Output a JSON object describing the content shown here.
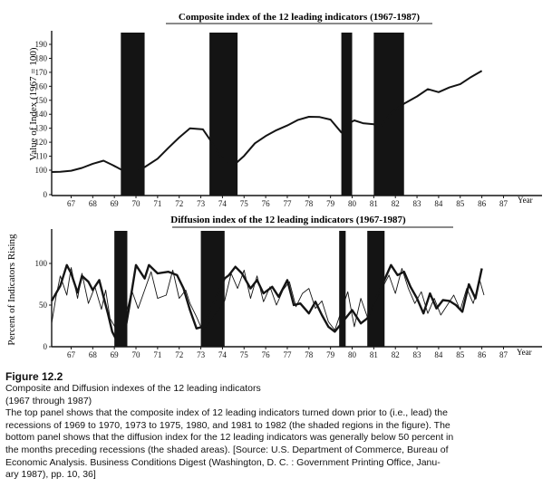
{
  "colors": {
    "ink": "#141414",
    "paper": "#ffffff",
    "shade": "#141414"
  },
  "chart_data": [
    {
      "type": "line",
      "title": "Composite index of the 12 leading indicators (1967-1987)",
      "ylabel": "Value of Index (1967 = 100)",
      "xlabel": "Year",
      "x_ticks": [
        "67",
        "68",
        "69",
        "70",
        "71",
        "72",
        "73",
        "74",
        "75",
        "76",
        "77",
        "78",
        "79",
        "80",
        "81",
        "82",
        "83",
        "84",
        "85",
        "86",
        "87"
      ],
      "y_ticks": [
        {
          "value": 0,
          "label": "0"
        },
        {
          "value": 100,
          "label": "100"
        },
        {
          "value": 110,
          "label": "110"
        },
        {
          "value": 120,
          "label": "120"
        },
        {
          "value": 130,
          "label": "130"
        },
        {
          "value": 140,
          "label": "140"
        },
        {
          "value": 150,
          "label": "150"
        },
        {
          "value": 160,
          "label": "160"
        },
        {
          "value": 170,
          "label": "170"
        },
        {
          "value": 180,
          "label": "180"
        },
        {
          "value": 190,
          "label": "190"
        }
      ],
      "recessions": [
        [
          1969.8,
          1970.9
        ],
        [
          1973.9,
          1975.2
        ],
        [
          1980.0,
          1980.5
        ],
        [
          1981.5,
          1982.9
        ]
      ],
      "series": [
        {
          "x": [
            1966.6,
            1967.0,
            1967.5,
            1968.0,
            1968.5,
            1969.0,
            1969.4,
            1969.8,
            1970.5,
            1970.9,
            1971.5,
            1972.0,
            1972.5,
            1973.0,
            1973.6,
            1973.9,
            1974.3,
            1974.7,
            1975.1,
            1975.5,
            1976.0,
            1976.5,
            1977.0,
            1977.5,
            1978.0,
            1978.5,
            1979.0,
            1979.5,
            1980.0,
            1980.3,
            1980.6,
            1981.0,
            1981.5,
            1981.8,
            1982.3,
            1982.9,
            1983.5,
            1984.0,
            1984.5,
            1985.0,
            1985.5,
            1986.0,
            1986.5
          ],
          "y": [
            92.6,
            93.4,
            97.6,
            101.6,
            104.6,
            106.8,
            103.8,
            100.6,
            100.6,
            102.2,
            108.2,
            116.0,
            123.4,
            130.0,
            129.2,
            122.4,
            112.2,
            104.6,
            104.6,
            110.2,
            119.2,
            124.4,
            128.6,
            132.0,
            136.0,
            138.2,
            138.0,
            136.2,
            127.0,
            133.0,
            135.6,
            133.6,
            132.8,
            131.0,
            141.0,
            147.6,
            152.8,
            158.0,
            155.8,
            159.2,
            161.6,
            166.6,
            171.0
          ]
        }
      ]
    },
    {
      "type": "line",
      "title": "Diffusion index of the 12 leading indicators (1967-1987)",
      "ylabel": "Percent of Indicators Rising",
      "xlabel": "Year",
      "x_ticks": [
        "67",
        "68",
        "69",
        "70",
        "71",
        "72",
        "73",
        "74",
        "75",
        "76",
        "77",
        "78",
        "79",
        "80",
        "81",
        "82",
        "83",
        "84",
        "85",
        "86",
        "87"
      ],
      "y_ticks": [
        {
          "value": 0,
          "label": "0"
        },
        {
          "value": 50,
          "label": "50"
        },
        {
          "value": 100,
          "label": "100"
        }
      ],
      "recessions": [
        [
          1969.5,
          1970.1
        ],
        [
          1973.5,
          1974.6
        ],
        [
          1979.9,
          1980.2
        ],
        [
          1981.2,
          1982.0
        ]
      ],
      "series": [
        {
          "x": [
            1966.6,
            1967.0,
            1967.3,
            1967.5,
            1967.8,
            1968.0,
            1968.3,
            1968.5,
            1968.8,
            1969.0,
            1969.2,
            1969.4,
            1969.6,
            1969.9,
            1970.2,
            1970.5,
            1970.9,
            1971.1,
            1971.5,
            1972.0,
            1972.4,
            1972.7,
            1973.0,
            1973.3,
            1973.6,
            1974.6,
            1974.8,
            1975.1,
            1975.4,
            1975.8,
            1976.1,
            1976.4,
            1976.8,
            1977.1,
            1977.5,
            1977.8,
            1978.1,
            1978.5,
            1978.8,
            1979.1,
            1979.4,
            1979.7,
            1980.5,
            1980.9,
            1981.2,
            1982.3,
            1982.6,
            1982.9,
            1983.2,
            1983.5,
            1983.8,
            1984.1,
            1984.4,
            1984.7,
            1985.0,
            1985.3,
            1985.6,
            1985.9,
            1986.2,
            1986.5
          ],
          "y": [
            55,
            73,
            98,
            88,
            65,
            85,
            78,
            68,
            80,
            60,
            40,
            18,
            8,
            4,
            50,
            98,
            82,
            98,
            88,
            90,
            86,
            70,
            44,
            22,
            24,
            82,
            86,
            96,
            88,
            70,
            80,
            64,
            72,
            60,
            80,
            50,
            52,
            40,
            54,
            38,
            24,
            18,
            44,
            28,
            34,
            98,
            86,
            90,
            72,
            58,
            40,
            64,
            46,
            56,
            55,
            50,
            42,
            75,
            58,
            94
          ]
        },
        {
          "x": [
            1966.6,
            1966.8,
            1967.0,
            1967.3,
            1967.5,
            1967.8,
            1968.0,
            1968.3,
            1968.6,
            1968.9,
            1969.1,
            1969.3,
            1969.5,
            1969.8,
            1970.3,
            1970.6,
            1970.9,
            1971.2,
            1971.5,
            1971.9,
            1972.2,
            1972.5,
            1972.8,
            1973.0,
            1973.3,
            1973.6,
            1974.6,
            1974.9,
            1975.2,
            1975.5,
            1975.8,
            1976.1,
            1976.4,
            1976.7,
            1977.0,
            1977.3,
            1977.6,
            1977.9,
            1978.2,
            1978.5,
            1978.8,
            1979.1,
            1979.4,
            1979.7,
            1980.3,
            1980.6,
            1980.9,
            1981.2,
            1982.2,
            1982.5,
            1982.8,
            1983.1,
            1983.4,
            1983.7,
            1984.0,
            1984.3,
            1984.6,
            1984.9,
            1985.2,
            1985.5,
            1985.8,
            1986.1,
            1986.4,
            1986.6
          ],
          "y": [
            28,
            60,
            85,
            62,
            95,
            58,
            88,
            52,
            72,
            45,
            68,
            34,
            25,
            10,
            68,
            46,
            68,
            90,
            58,
            62,
            92,
            58,
            68,
            52,
            36,
            18,
            55,
            88,
            70,
            92,
            58,
            85,
            54,
            72,
            50,
            68,
            78,
            48,
            64,
            70,
            46,
            55,
            30,
            20,
            66,
            24,
            58,
            36,
            86,
            64,
            94,
            70,
            52,
            66,
            40,
            58,
            38,
            50,
            62,
            44,
            70,
            52,
            80,
            62
          ]
        }
      ]
    }
  ],
  "caption": {
    "figure_label": "Figure  12.2",
    "subtitle": "Composite and Diffusion indexes of the 12 leading indicators",
    "period": "(1967 through 1987)",
    "text_lines": [
      "The top panel shows that the composite index of 12 leading indicators turned down prior to (i.e., lead) the",
      "recessions of 1969 to 1970, 1973 to 1975, 1980, and 1981 to 1982 (the shaded regions in the figure). The",
      "bottom panel shows that the diffusion index for the 12 leading indicators was generally below 50 percent in",
      "the months preceding recessions (the shaded areas). [Source: U.S. Department of Commerce, Bureau of",
      "Economic Analysis. Business Conditions Digest (Washington, D. C. : Government Printing Office, Janu-",
      "ary 1987), pp. 10, 36]"
    ]
  }
}
